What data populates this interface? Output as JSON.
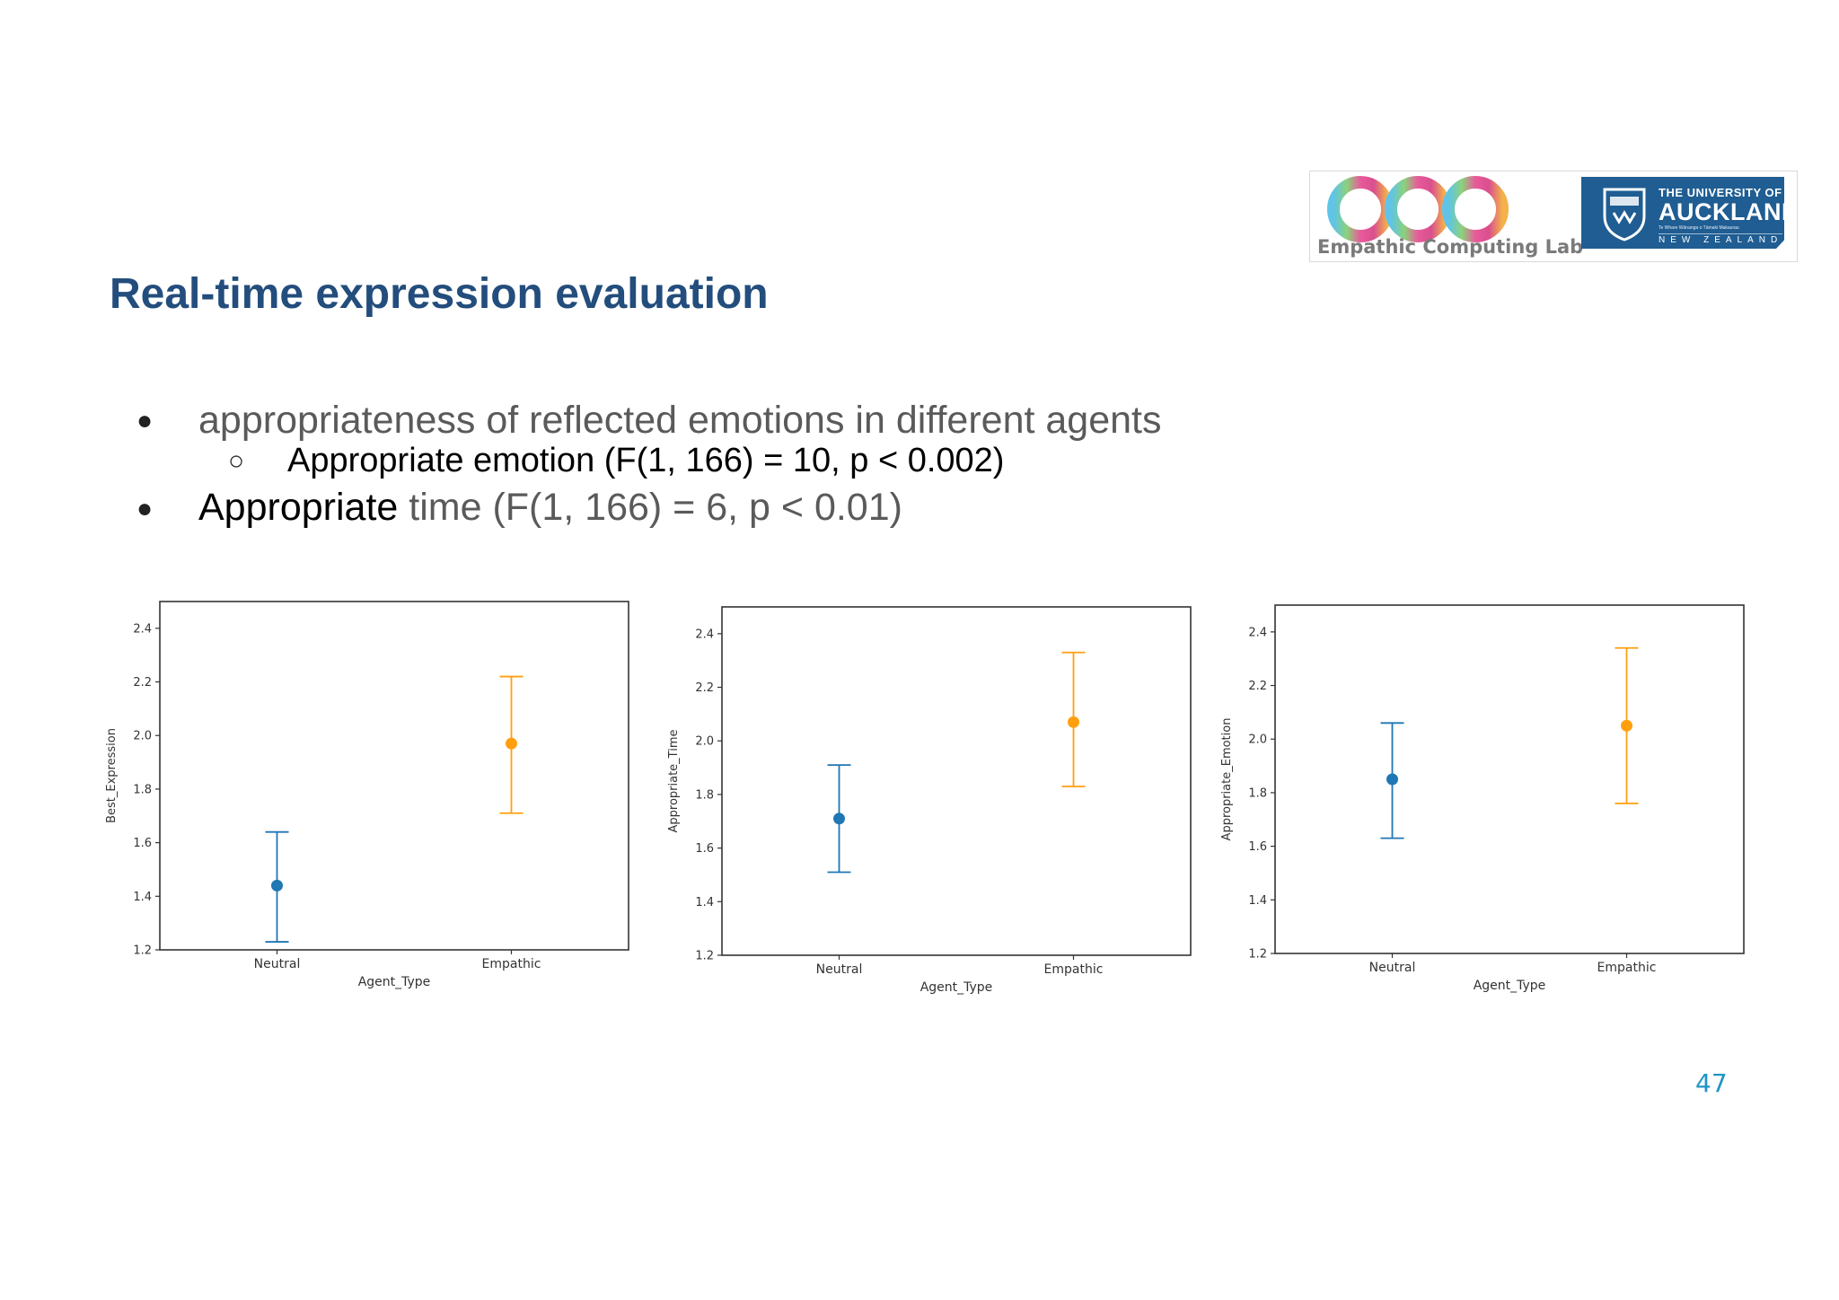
{
  "logos": {
    "lab_name": "Empathic Computing Lab",
    "university": {
      "line1": "THE UNIVERSITY OF",
      "line2": "AUCKLAND",
      "line3": "Te Whare Wānanga o Tāmaki Makaurau",
      "line4": "NEW ZEALAND"
    }
  },
  "slide": {
    "title": "Real-time expression evaluation",
    "bullet1": "appropriateness of reflected emotions in different agents",
    "bullet2": "Appropriate emotion (F(1, 166) = 10, p < 0.002)",
    "bullet3_dark": "Appropriate",
    "bullet3_gray": " time (F(1, 166) = 6, p < 0.01)",
    "page_number": "47"
  },
  "colors": {
    "neutral": "#1f77b4",
    "empathic": "#ff9f0e",
    "title": "#234d7c"
  },
  "chart_data": [
    {
      "type": "scatter",
      "xlabel": "Agent_Type",
      "ylabel": "Best_Expression",
      "categories": [
        "Neutral",
        "Empathic"
      ],
      "values": [
        1.44,
        1.97
      ],
      "ci_low": [
        1.23,
        1.71
      ],
      "ci_high": [
        1.64,
        2.22
      ],
      "ylim": [
        1.2,
        2.5
      ],
      "yticks": [
        "1.2",
        "1.4",
        "1.6",
        "1.8",
        "2.0",
        "2.2",
        "2.4"
      ]
    },
    {
      "type": "scatter",
      "xlabel": "Agent_Type",
      "ylabel": "Appropriate_Time",
      "categories": [
        "Neutral",
        "Empathic"
      ],
      "values": [
        1.71,
        2.07
      ],
      "ci_low": [
        1.51,
        1.83
      ],
      "ci_high": [
        1.91,
        2.33
      ],
      "ylim": [
        1.2,
        2.5
      ],
      "yticks": [
        "1.2",
        "1.4",
        "1.6",
        "1.8",
        "2.0",
        "2.2",
        "2.4"
      ]
    },
    {
      "type": "scatter",
      "xlabel": "Agent_Type",
      "ylabel": "Appropriate_Emotion",
      "categories": [
        "Neutral",
        "Empathic"
      ],
      "values": [
        1.85,
        2.05
      ],
      "ci_low": [
        1.63,
        1.76
      ],
      "ci_high": [
        2.06,
        2.34
      ],
      "ylim": [
        1.2,
        2.5
      ],
      "yticks": [
        "1.2",
        "1.4",
        "1.6",
        "1.8",
        "2.0",
        "2.2",
        "2.4"
      ]
    }
  ]
}
